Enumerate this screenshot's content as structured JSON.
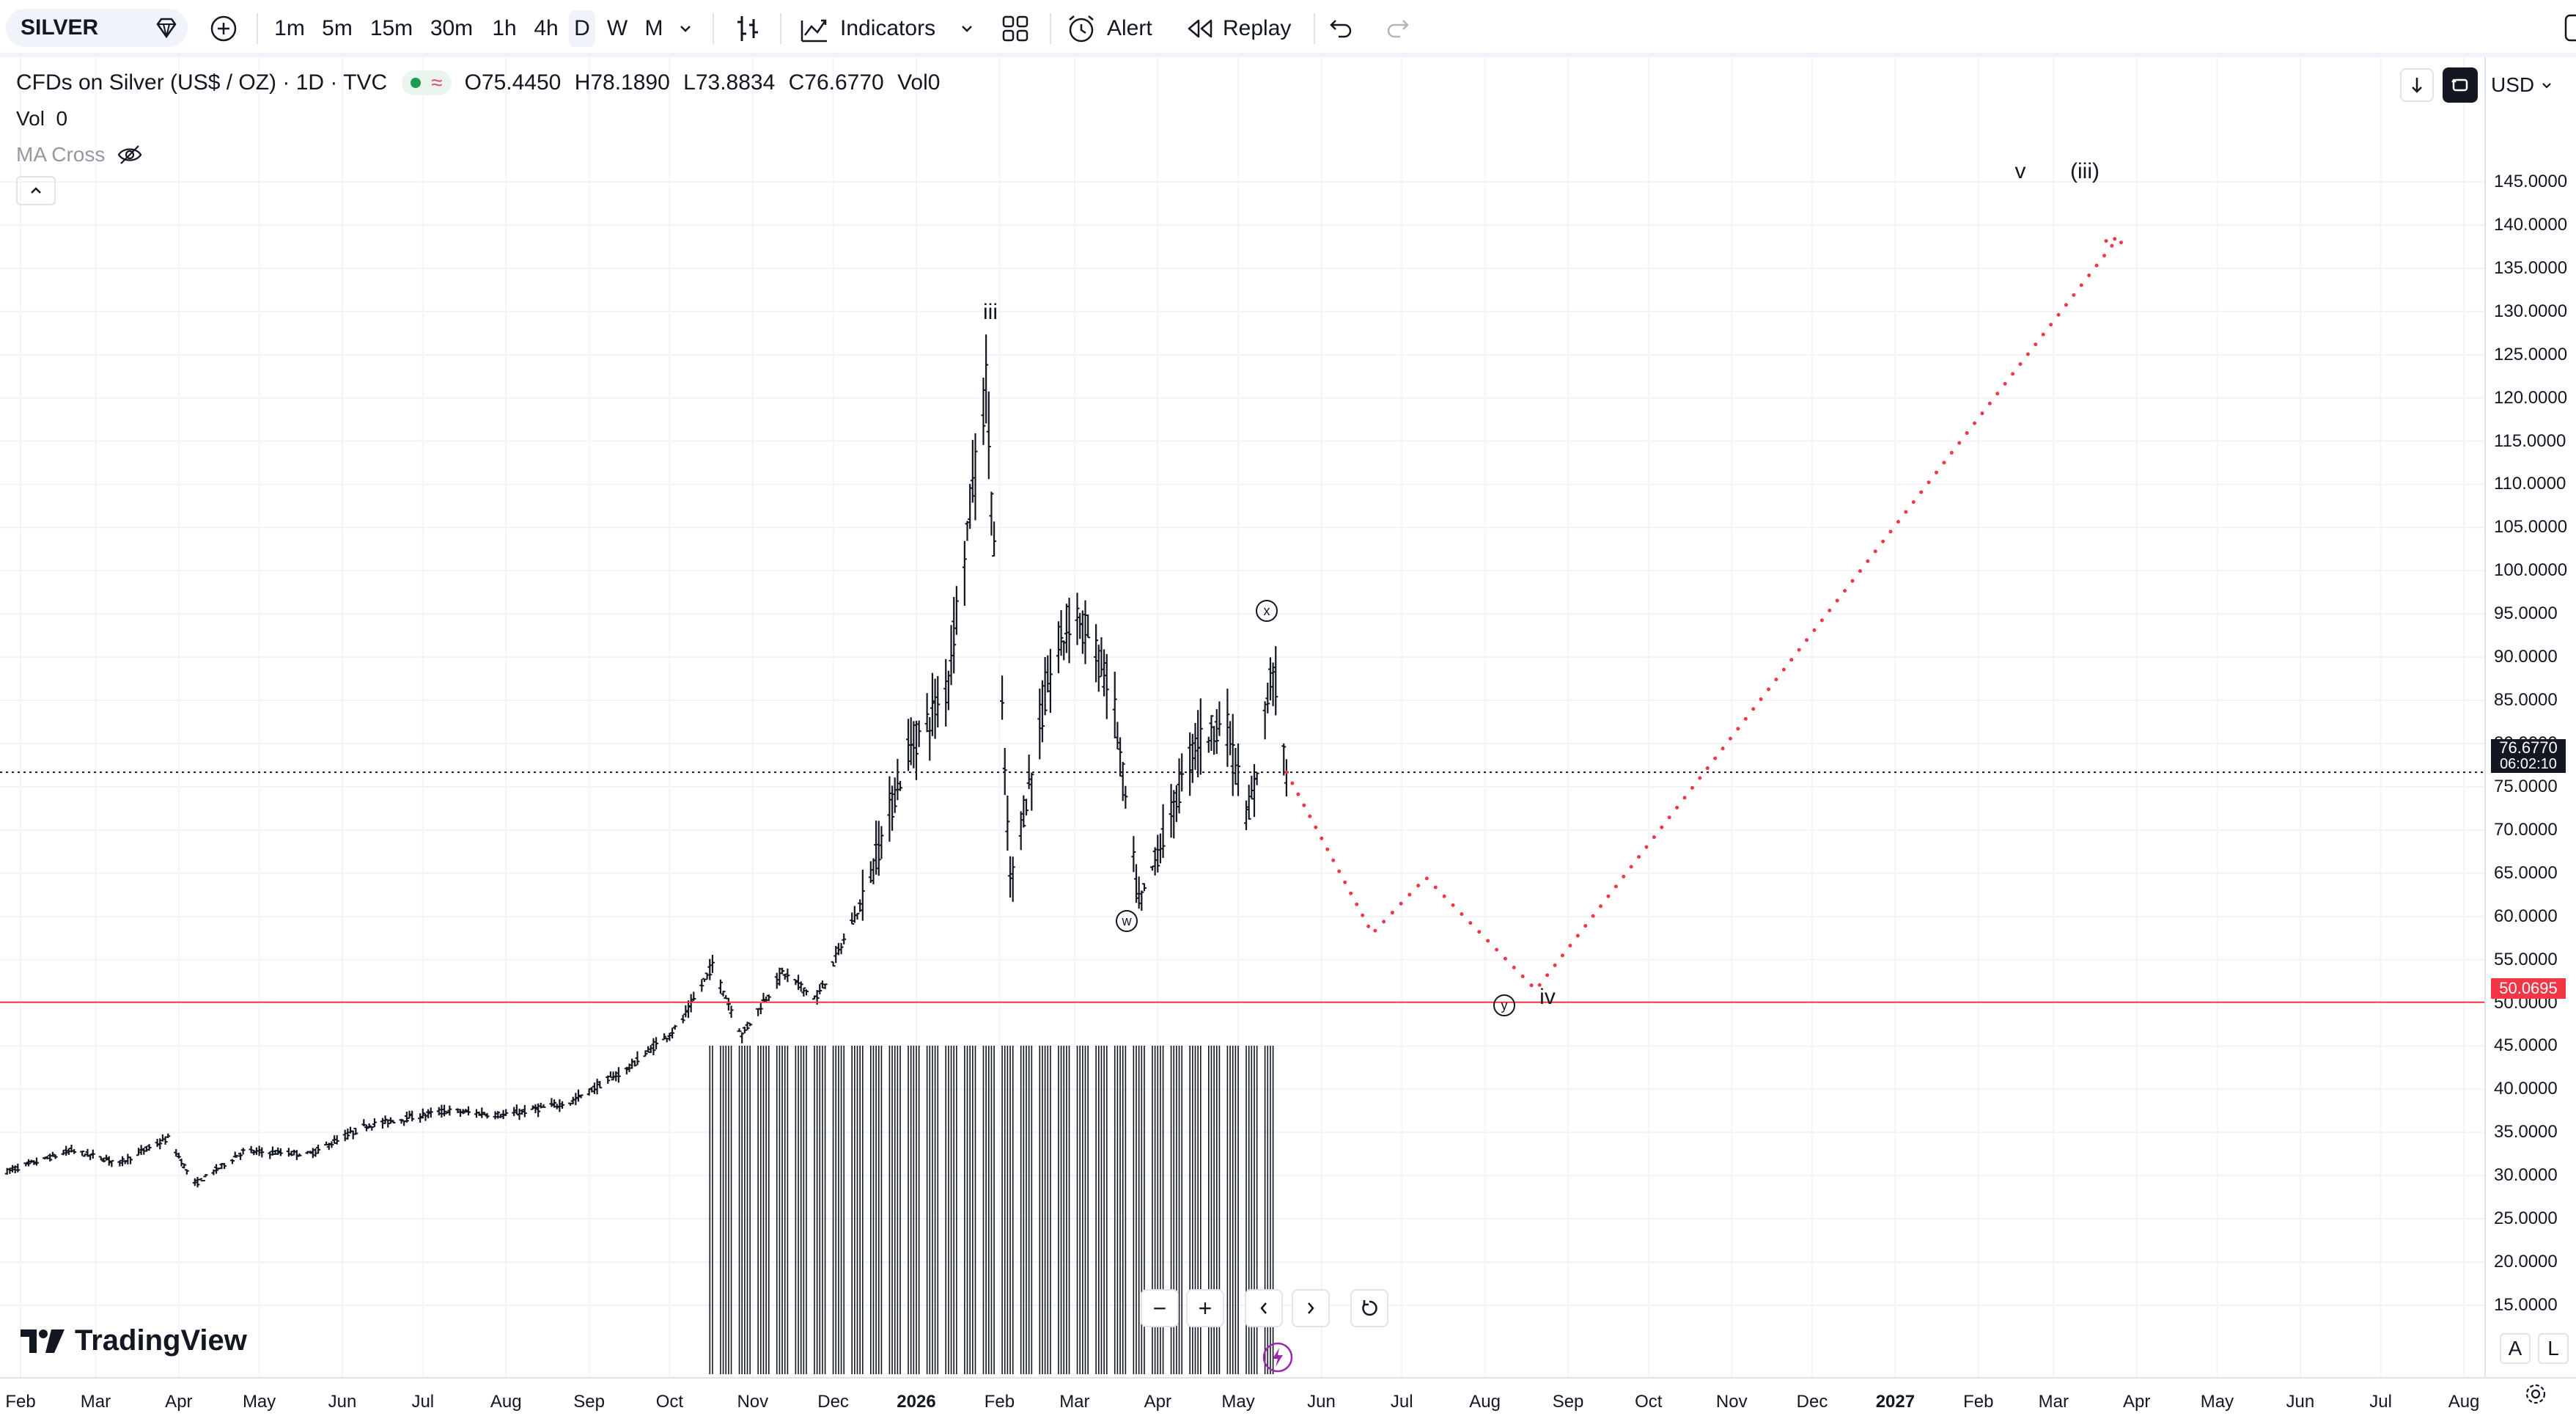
{
  "toolbar": {
    "symbol": "SILVER",
    "timeframes": [
      "1m",
      "5m",
      "15m",
      "30m",
      "1h",
      "4h",
      "D",
      "W",
      "M"
    ],
    "active_timeframe": "D",
    "indicators_label": "Indicators",
    "alert_label": "Alert",
    "replay_label": "Replay"
  },
  "legend": {
    "title": "CFDs on Silver (US$ / OZ) · 1D · TVC",
    "open": "O75.4450",
    "high": "H78.1890",
    "low": "L73.8834",
    "close": "C76.6770",
    "vol": "Vol0",
    "vol_line_label": "Vol",
    "vol_line_value": "0",
    "ma_label": "MA Cross"
  },
  "currency": "USD",
  "price_scale": [
    "145.0000",
    "140.0000",
    "135.0000",
    "130.0000",
    "125.0000",
    "120.0000",
    "115.0000",
    "110.0000",
    "105.0000",
    "100.0000",
    "95.0000",
    "90.0000",
    "85.0000",
    "80.0000",
    "75.0000",
    "70.0000",
    "65.0000",
    "60.0000",
    "55.0000",
    "50.0000",
    "45.0000",
    "40.0000",
    "35.0000",
    "30.0000",
    "25.0000",
    "20.0000",
    "15.0000"
  ],
  "current_price": {
    "value": "76.6770",
    "countdown": "06:02:10"
  },
  "horizontal_line": {
    "value": "50.0695"
  },
  "time_axis": [
    "Feb",
    "Mar",
    "Apr",
    "May",
    "Jun",
    "Jul",
    "Aug",
    "Sep",
    "Oct",
    "Nov",
    "Dec",
    "2026",
    "Feb",
    "Mar",
    "Apr",
    "May",
    "Jun",
    "Jul",
    "Aug",
    "Sep",
    "Oct",
    "Nov",
    "Dec",
    "2027",
    "Feb",
    "Mar",
    "Apr",
    "May",
    "Jun",
    "Jul",
    "Aug"
  ],
  "wave_labels": {
    "iii": "iii",
    "w": "w",
    "x": "x",
    "y": "y",
    "iv": "iv",
    "v": "v",
    "iii_paren": "(iii)"
  },
  "brand": "TradingView",
  "corner": {
    "auto": "A",
    "log": "L"
  },
  "chart_data": {
    "type": "ohlc",
    "symbol": "SILVER",
    "interval": "1D",
    "price_range": [
      12.5,
      147.5
    ],
    "last_close": 76.677,
    "support_level": 50.0695,
    "price_path": [
      {
        "date": "2025-01-27",
        "price": 30.5
      },
      {
        "date": "2025-02-20",
        "price": 32.9
      },
      {
        "date": "2025-03-10",
        "price": 31.5
      },
      {
        "date": "2025-03-28",
        "price": 34.3
      },
      {
        "date": "2025-04-07",
        "price": 29.0
      },
      {
        "date": "2025-04-25",
        "price": 32.8
      },
      {
        "date": "2025-05-20",
        "price": 32.5
      },
      {
        "date": "2025-06-10",
        "price": 35.8
      },
      {
        "date": "2025-07-10",
        "price": 37.5
      },
      {
        "date": "2025-08-01",
        "price": 37.0
      },
      {
        "date": "2025-08-25",
        "price": 38.5
      },
      {
        "date": "2025-09-15",
        "price": 42.3
      },
      {
        "date": "2025-10-05",
        "price": 47.5
      },
      {
        "date": "2025-10-17",
        "price": 54.3
      },
      {
        "date": "2025-10-28",
        "price": 46.3
      },
      {
        "date": "2025-11-12",
        "price": 53.5
      },
      {
        "date": "2025-11-25",
        "price": 50.5
      },
      {
        "date": "2025-12-12",
        "price": 62.0
      },
      {
        "date": "2025-12-29",
        "price": 79.0
      },
      {
        "date": "2026-01-12",
        "price": 86.0
      },
      {
        "date": "2026-01-27",
        "price": 121.6
      },
      {
        "date": "2026-02-05",
        "price": 64.0
      },
      {
        "date": "2026-02-20",
        "price": 88.0
      },
      {
        "date": "2026-03-01",
        "price": 96.0
      },
      {
        "date": "2026-03-15",
        "price": 86.0
      },
      {
        "date": "2026-03-25",
        "price": 61.0
      },
      {
        "date": "2026-04-15",
        "price": 80.0
      },
      {
        "date": "2026-04-26",
        "price": 83.0
      },
      {
        "date": "2026-05-05",
        "price": 71.0
      },
      {
        "date": "2026-05-14",
        "price": 89.5
      },
      {
        "date": "2026-05-19",
        "price": 76.677
      }
    ],
    "projection": [
      {
        "date": "2026-05-19",
        "price": 76.677
      },
      {
        "date": "2026-06-20",
        "price": 58.0
      },
      {
        "date": "2026-07-10",
        "price": 64.5
      },
      {
        "date": "2026-08-20",
        "price": 51.5
      },
      {
        "date": "2027-03-25",
        "price": 138.5
      }
    ],
    "wave_annotations": [
      {
        "label": "iii",
        "date": "2026-01-27",
        "price": 126.0
      },
      {
        "label": "w",
        "date": "2026-03-25",
        "price": 59.0
      },
      {
        "label": "x",
        "date": "2026-05-13",
        "price": 92.0
      },
      {
        "label": "y",
        "date": "2026-08-15",
        "price": 49.0
      },
      {
        "label": "iv",
        "date": "2026-08-30",
        "price": 49.5
      },
      {
        "label": "v",
        "date": "2027-02-28",
        "price": 141.5
      },
      {
        "label": "(iii)",
        "date": "2027-03-20",
        "price": 141.5
      }
    ]
  }
}
